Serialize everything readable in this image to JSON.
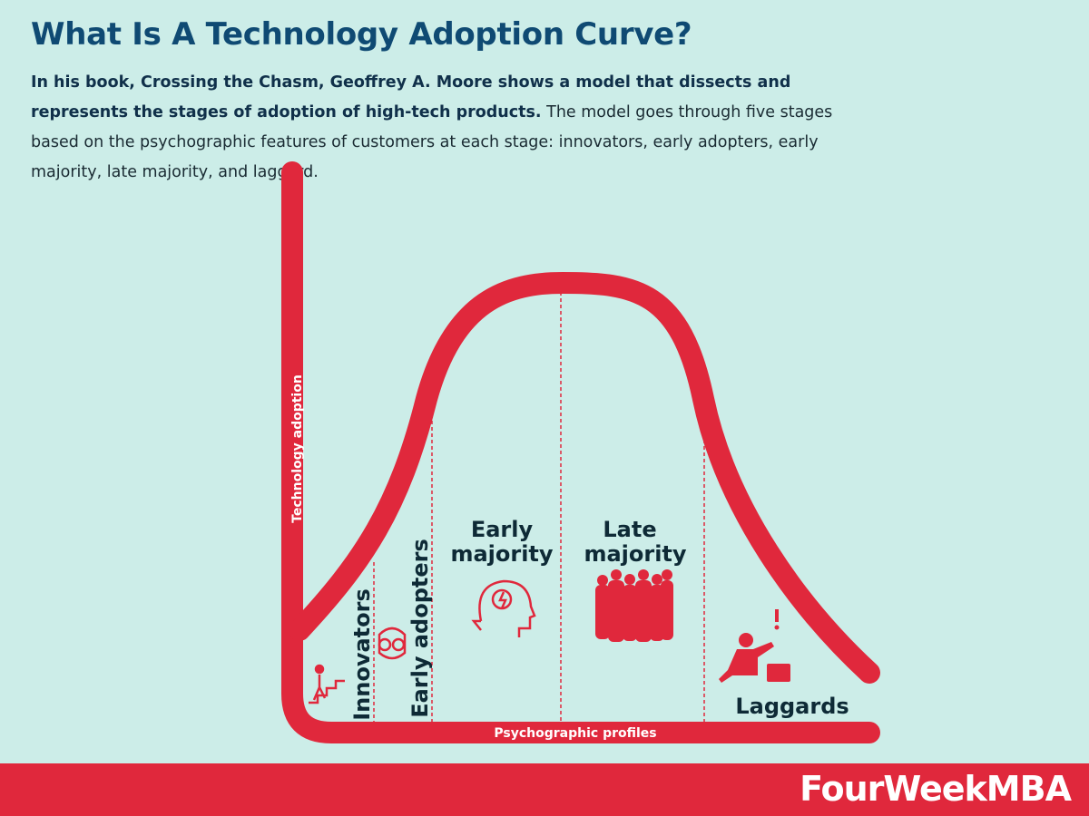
{
  "header": {
    "title": "What Is A Technology Adoption Curve?",
    "intro_bold": "In his book, Crossing the Chasm, Geoffrey A. Moore shows a model that dissects and represents the stages of adoption of high-tech products.",
    "intro_rest": "The model goes through five stages based on the psychographic features of customers at each stage: innovators, early adopters, early majority, late majority, and laggard."
  },
  "diagram": {
    "y_axis_label": "Technology adoption",
    "x_axis_label": "Psychographic profiles",
    "stages": {
      "innovators": "Innovators",
      "early_adopters": "Early adopters",
      "early_majority": [
        "Early",
        "majority"
      ],
      "late_majority": [
        "Late",
        "majority"
      ],
      "laggards": "Laggards"
    }
  },
  "footer": {
    "brand": "FourWeekMBA"
  }
}
